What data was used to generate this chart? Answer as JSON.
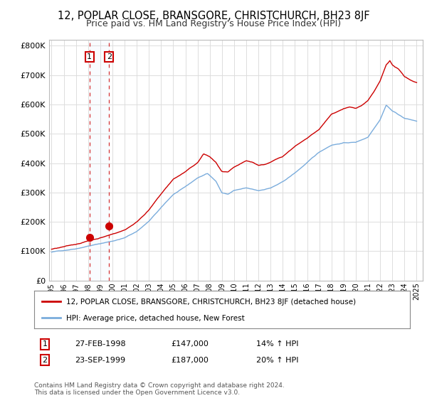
{
  "title1": "12, POPLAR CLOSE, BRANSGORE, CHRISTCHURCH, BH23 8JF",
  "title2": "Price paid vs. HM Land Registry's House Price Index (HPI)",
  "ylabel_ticks": [
    "£0",
    "£100K",
    "£200K",
    "£300K",
    "£400K",
    "£500K",
    "£600K",
    "£700K",
    "£800K"
  ],
  "ytick_vals": [
    0,
    100000,
    200000,
    300000,
    400000,
    500000,
    600000,
    700000,
    800000
  ],
  "ylim": [
    0,
    820000
  ],
  "xlim_start": 1994.8,
  "xlim_end": 2025.5,
  "sale1_date": 1998.12,
  "sale1_price": 147000,
  "sale2_date": 1999.73,
  "sale2_price": 187000,
  "red_line_color": "#cc0000",
  "blue_line_color": "#7aacdc",
  "shade_color": "#ddeeff",
  "legend_label1": "12, POPLAR CLOSE, BRANSGORE, CHRISTCHURCH, BH23 8JF (detached house)",
  "legend_label2": "HPI: Average price, detached house, New Forest",
  "copyright_text": "Contains HM Land Registry data © Crown copyright and database right 2024.\nThis data is licensed under the Open Government Licence v3.0.",
  "background_color": "#ffffff",
  "grid_color": "#dddddd",
  "title_fontsize": 10.5,
  "subtitle_fontsize": 9
}
